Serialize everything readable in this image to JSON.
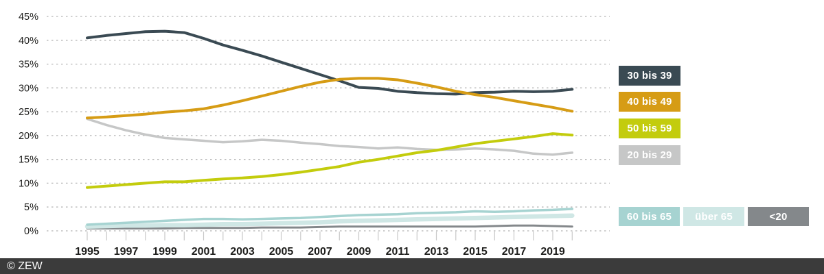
{
  "footer": {
    "copyright": "© ZEW"
  },
  "legend": {
    "items": [
      {
        "label": "30 bis 39",
        "color": "#3a4a53"
      },
      {
        "label": "40 bis 49",
        "color": "#d69c15"
      },
      {
        "label": "50 bis 59",
        "color": "#c3cc0d"
      },
      {
        "label": "20 bis 29",
        "color": "#c6c7c7"
      },
      {
        "label": "60 bis 65",
        "color": "#a6d3d1"
      },
      {
        "label": "über 65",
        "color": "#cfe7e5"
      },
      {
        "label": "<20",
        "color": "#84888b"
      }
    ]
  },
  "chart_data": {
    "type": "line",
    "title": "",
    "xlabel": "",
    "ylabel": "",
    "x": [
      1995,
      1996,
      1997,
      1998,
      1999,
      2000,
      2001,
      2002,
      2003,
      2004,
      2005,
      2006,
      2007,
      2008,
      2009,
      2010,
      2011,
      2012,
      2013,
      2014,
      2015,
      2016,
      2017,
      2018,
      2019,
      2020
    ],
    "x_tick_labels": [
      "1995",
      "1997",
      "1999",
      "2001",
      "2003",
      "2005",
      "2007",
      "2009",
      "2011",
      "2013",
      "2015",
      "2017",
      "2019"
    ],
    "ylim": [
      0,
      45
    ],
    "y_ticks": [
      0,
      5,
      10,
      15,
      20,
      25,
      30,
      35,
      40,
      45
    ],
    "y_tick_suffix": "%",
    "grid": "dashed-horizontal",
    "legend_position": "right",
    "series": [
      {
        "name": "<20",
        "color": "#84888b",
        "width": 3,
        "values": [
          0.5,
          0.5,
          0.5,
          0.5,
          0.5,
          0.6,
          0.6,
          0.6,
          0.6,
          0.7,
          0.7,
          0.7,
          0.8,
          0.9,
          0.9,
          0.9,
          0.9,
          0.9,
          0.9,
          0.9,
          0.9,
          1.0,
          1.1,
          1.1,
          1.0,
          0.9
        ]
      },
      {
        "name": "über 65",
        "color": "#cfe7e5",
        "width": 6.5,
        "values": [
          0.9,
          1.0,
          1.1,
          1.1,
          1.2,
          1.2,
          1.3,
          1.4,
          1.4,
          1.5,
          1.6,
          1.7,
          1.8,
          2.0,
          2.1,
          2.2,
          2.3,
          2.4,
          2.5,
          2.6,
          2.7,
          2.8,
          2.9,
          3.0,
          3.1,
          3.2
        ]
      },
      {
        "name": "60 bis 65",
        "color": "#a6d3d1",
        "width": 3.5,
        "values": [
          1.3,
          1.5,
          1.7,
          1.9,
          2.1,
          2.3,
          2.5,
          2.5,
          2.4,
          2.5,
          2.6,
          2.7,
          2.9,
          3.1,
          3.3,
          3.4,
          3.5,
          3.7,
          3.8,
          3.9,
          4.1,
          4.0,
          4.1,
          4.3,
          4.4,
          4.6
        ]
      },
      {
        "name": "20 bis 29",
        "color": "#c6c7c7",
        "width": 3.5,
        "values": [
          23.5,
          22.2,
          21.1,
          20.2,
          19.5,
          19.2,
          18.9,
          18.6,
          18.8,
          19.1,
          18.9,
          18.5,
          18.2,
          17.8,
          17.6,
          17.3,
          17.5,
          17.2,
          17.0,
          17.1,
          17.3,
          17.1,
          16.8,
          16.2,
          16.0,
          16.4
        ]
      },
      {
        "name": "50 bis 59",
        "color": "#c3cc0d",
        "width": 4,
        "values": [
          9.1,
          9.4,
          9.7,
          10.0,
          10.3,
          10.3,
          10.6,
          10.9,
          11.1,
          11.4,
          11.8,
          12.3,
          12.9,
          13.5,
          14.4,
          15.0,
          15.7,
          16.4,
          16.9,
          17.6,
          18.3,
          18.8,
          19.3,
          19.8,
          20.4,
          20.1
        ]
      },
      {
        "name": "30 bis 39",
        "color": "#3a4a53",
        "width": 4,
        "values": [
          40.5,
          41.0,
          41.4,
          41.8,
          41.9,
          41.6,
          40.4,
          39.0,
          37.9,
          36.7,
          35.4,
          34.1,
          32.8,
          31.5,
          30.1,
          29.9,
          29.3,
          29.0,
          28.8,
          28.7,
          29.0,
          29.1,
          29.3,
          29.2,
          29.3,
          29.7
        ]
      },
      {
        "name": "40 bis 49",
        "color": "#d69c15",
        "width": 4,
        "values": [
          23.7,
          23.9,
          24.2,
          24.5,
          24.9,
          25.2,
          25.6,
          26.4,
          27.3,
          28.3,
          29.3,
          30.3,
          31.2,
          31.8,
          32.0,
          32.0,
          31.7,
          31.0,
          30.2,
          29.3,
          28.6,
          28.0,
          27.3,
          26.6,
          25.9,
          25.1
        ]
      }
    ],
    "colors": {
      "grid_line": "#b4b4b4",
      "tick_line": "#c8c8c8",
      "axis_text": "#1d1d1b",
      "footer_bg": "#3b3b3b"
    }
  }
}
